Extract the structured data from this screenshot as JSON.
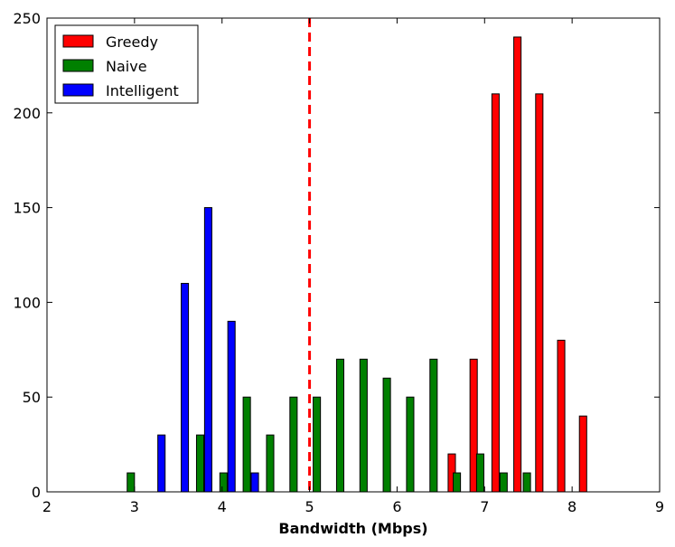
{
  "chart_data": {
    "type": "bar",
    "title": "",
    "xlabel": "Bandwidth (Mbps)",
    "ylabel": "",
    "xlim": [
      2,
      9
    ],
    "ylim": [
      0,
      250
    ],
    "xticks": [
      2,
      3,
      4,
      5,
      6,
      7,
      8,
      9
    ],
    "yticks": [
      0,
      50,
      100,
      150,
      200,
      250
    ],
    "bar_width": 0.0833,
    "grid": false,
    "legend_position": "top-left",
    "reference_line": {
      "x": 5,
      "color": "#ff0000",
      "style": "dashed"
    },
    "series": [
      {
        "name": "Greedy",
        "color": "#ff0000",
        "points": [
          {
            "x": 6.625,
            "y": 20
          },
          {
            "x": 6.875,
            "y": 70
          },
          {
            "x": 7.125,
            "y": 210
          },
          {
            "x": 7.375,
            "y": 240
          },
          {
            "x": 7.625,
            "y": 210
          },
          {
            "x": 7.875,
            "y": 80
          },
          {
            "x": 8.125,
            "y": 40
          }
        ]
      },
      {
        "name": "Naive",
        "color": "#008000",
        "points": [
          {
            "x": 2.958,
            "y": 10
          },
          {
            "x": 3.75,
            "y": 30
          },
          {
            "x": 4.017,
            "y": 10
          },
          {
            "x": 4.283,
            "y": 50
          },
          {
            "x": 4.55,
            "y": 30
          },
          {
            "x": 4.817,
            "y": 50
          },
          {
            "x": 5.083,
            "y": 50
          },
          {
            "x": 5.35,
            "y": 70
          },
          {
            "x": 5.617,
            "y": 70
          },
          {
            "x": 5.883,
            "y": 60
          },
          {
            "x": 6.15,
            "y": 50
          },
          {
            "x": 6.417,
            "y": 70
          },
          {
            "x": 6.683,
            "y": 10
          },
          {
            "x": 6.95,
            "y": 20
          },
          {
            "x": 7.217,
            "y": 10
          },
          {
            "x": 7.483,
            "y": 10
          }
        ]
      },
      {
        "name": "Intelligent",
        "color": "#0000ff",
        "points": [
          {
            "x": 3.308,
            "y": 30
          },
          {
            "x": 3.575,
            "y": 110
          },
          {
            "x": 3.842,
            "y": 150
          },
          {
            "x": 4.108,
            "y": 90
          },
          {
            "x": 4.375,
            "y": 10
          }
        ]
      }
    ]
  }
}
